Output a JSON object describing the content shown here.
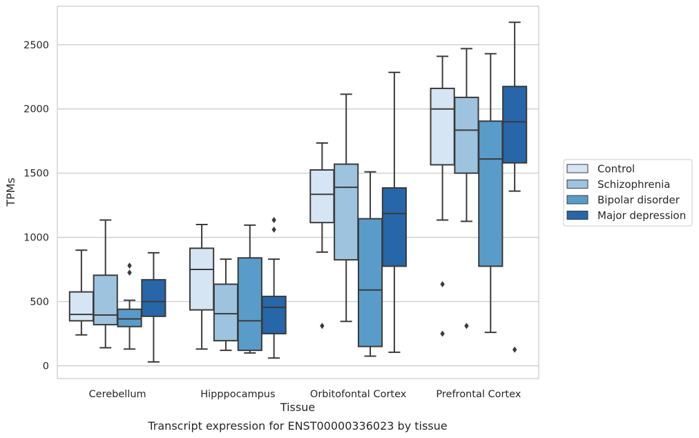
{
  "chart_data": {
    "type": "box",
    "caption": "Transcript expression for ENST00000336023 by tissue",
    "xlabel": "Tissue",
    "ylabel": "TPMs",
    "ylim": [
      -100,
      2800
    ],
    "yticks": [
      0,
      500,
      1000,
      1500,
      2000,
      2500
    ],
    "grid": "horizontal",
    "legend_position": "right",
    "categories": [
      "Cerebellum",
      "Hipppocampus",
      "Orbitofontal Cortex",
      "Prefrontal Cortex"
    ],
    "series": [
      {
        "name": "Control",
        "color": "#d6e5f4",
        "boxes": [
          {
            "whislo": 240,
            "q1": 350,
            "med": 400,
            "q3": 575,
            "whishi": 900,
            "fliers": []
          },
          {
            "whislo": 130,
            "q1": 435,
            "med": 750,
            "q3": 915,
            "whishi": 1100,
            "fliers": []
          },
          {
            "whislo": 885,
            "q1": 1115,
            "med": 1335,
            "q3": 1525,
            "whishi": 1735,
            "fliers": [
              310
            ]
          },
          {
            "whislo": 1135,
            "q1": 1565,
            "med": 2000,
            "q3": 2160,
            "whishi": 2410,
            "fliers": [
              635,
              250
            ]
          }
        ]
      },
      {
        "name": "Schizophrenia",
        "color": "#9dc3de",
        "boxes": [
          {
            "whislo": 140,
            "q1": 320,
            "med": 395,
            "q3": 705,
            "whishi": 1135,
            "fliers": []
          },
          {
            "whislo": 120,
            "q1": 195,
            "med": 405,
            "q3": 635,
            "whishi": 830,
            "fliers": []
          },
          {
            "whislo": 345,
            "q1": 825,
            "med": 1390,
            "q3": 1570,
            "whishi": 2115,
            "fliers": []
          },
          {
            "whislo": 1125,
            "q1": 1500,
            "med": 1835,
            "q3": 2090,
            "whishi": 2470,
            "fliers": [
              310
            ]
          }
        ]
      },
      {
        "name": "Bipolar disorder",
        "color": "#5a9cc9",
        "boxes": [
          {
            "whislo": 130,
            "q1": 305,
            "med": 365,
            "q3": 440,
            "whishi": 510,
            "fliers": [
              780,
              725
            ]
          },
          {
            "whislo": 100,
            "q1": 120,
            "med": 350,
            "q3": 840,
            "whishi": 1095,
            "fliers": []
          },
          {
            "whislo": 75,
            "q1": 150,
            "med": 590,
            "q3": 1145,
            "whishi": 1510,
            "fliers": []
          },
          {
            "whislo": 260,
            "q1": 775,
            "med": 1610,
            "q3": 1905,
            "whishi": 2430,
            "fliers": []
          }
        ]
      },
      {
        "name": "Major depression",
        "color": "#2666a9",
        "boxes": [
          {
            "whislo": 30,
            "q1": 385,
            "med": 500,
            "q3": 670,
            "whishi": 880,
            "fliers": []
          },
          {
            "whislo": 60,
            "q1": 250,
            "med": 455,
            "q3": 540,
            "whishi": 830,
            "fliers": [
              1135,
              1060
            ]
          },
          {
            "whislo": 105,
            "q1": 775,
            "med": 1185,
            "q3": 1385,
            "whishi": 2285,
            "fliers": []
          },
          {
            "whislo": 1360,
            "q1": 1580,
            "med": 1900,
            "q3": 2175,
            "whishi": 2675,
            "fliers": [
              125
            ]
          }
        ]
      }
    ]
  }
}
